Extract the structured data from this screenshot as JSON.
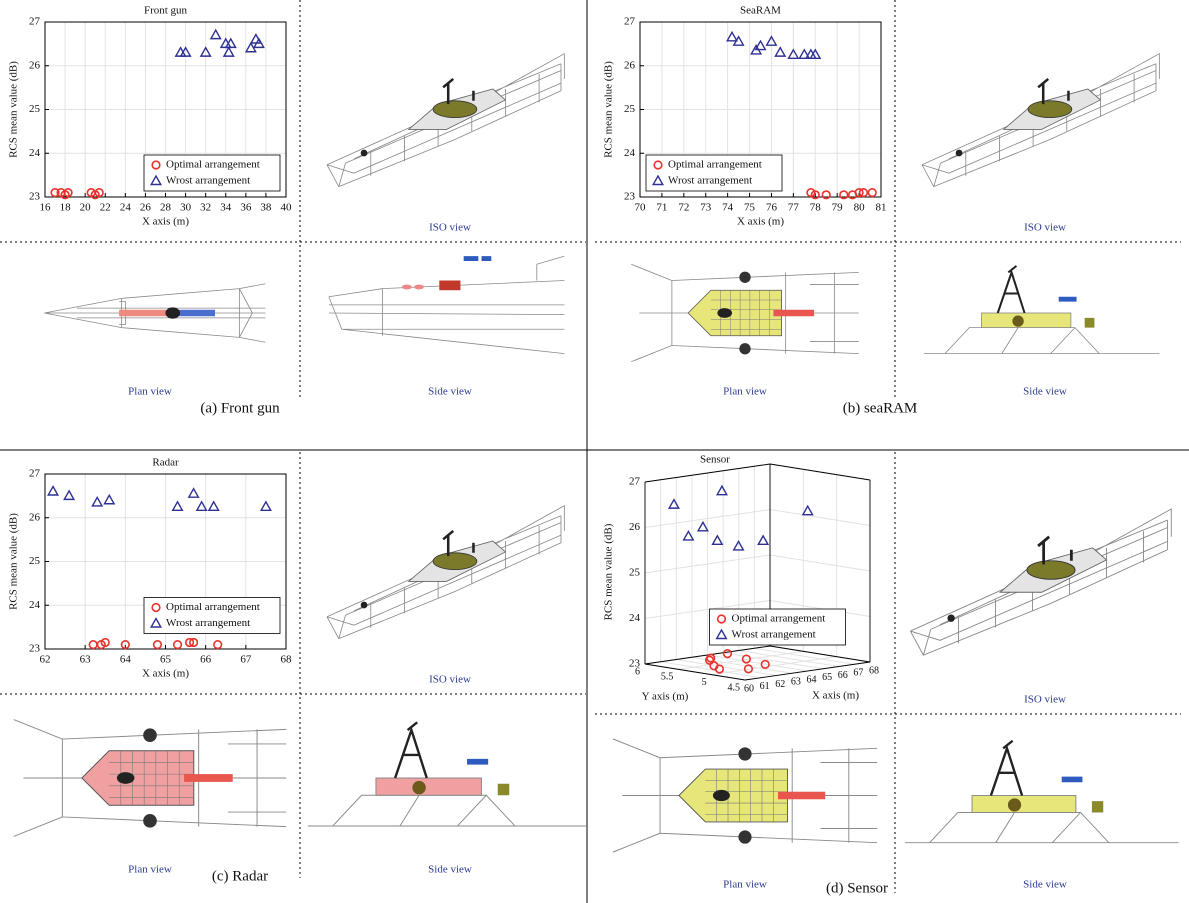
{
  "chart_data": [
    {
      "type": "scatter",
      "title": "Front gun",
      "xlabel": "X axis (m)",
      "ylabel": "RCS mean value (dB)",
      "xlim": [
        16,
        40
      ],
      "xticks": [
        16,
        18,
        20,
        22,
        24,
        26,
        28,
        30,
        32,
        34,
        36,
        38,
        40
      ],
      "ylim": [
        23,
        27
      ],
      "yticks": [
        23,
        24,
        25,
        26,
        27
      ],
      "grid": true,
      "legend": "lower right",
      "series": [
        {
          "name": "Optimal arrangement",
          "color": "#e8322b",
          "marker": "circle",
          "x": [
            17,
            17.6,
            18,
            18.3,
            20.6,
            21,
            21.4
          ],
          "values": [
            23.1,
            23.1,
            23.05,
            23.1,
            23.1,
            23.05,
            23.1
          ]
        },
        {
          "name": "Wrost arrangement",
          "color": "#2e3192",
          "marker": "triangle",
          "x": [
            29.5,
            30,
            32,
            33,
            34,
            34.3,
            34.5,
            36.5,
            37,
            37.3
          ],
          "values": [
            26.3,
            26.3,
            26.3,
            26.7,
            26.5,
            26.3,
            26.5,
            26.4,
            26.6,
            26.5
          ]
        }
      ]
    },
    {
      "type": "scatter",
      "title": "SeaRAM",
      "xlabel": "X axis (m)",
      "ylabel": "RCS mean value (dB)",
      "xlim": [
        70,
        81
      ],
      "xticks": [
        70,
        71,
        72,
        73,
        74,
        75,
        76,
        77,
        78,
        79,
        80,
        81
      ],
      "ylim": [
        23,
        27
      ],
      "yticks": [
        23,
        24,
        25,
        26,
        27
      ],
      "grid": true,
      "legend": "lower left",
      "series": [
        {
          "name": "Optimal arrangement",
          "color": "#e8322b",
          "marker": "circle",
          "x": [
            77.8,
            78,
            78.5,
            79.3,
            79.7,
            80,
            80.2,
            80.6
          ],
          "values": [
            23.1,
            23.05,
            23.05,
            23.05,
            23.05,
            23.1,
            23.1,
            23.1
          ]
        },
        {
          "name": "Wrost arrangement",
          "color": "#2e3192",
          "marker": "triangle",
          "x": [
            74.2,
            74.5,
            75.3,
            75.5,
            76,
            76.4,
            77,
            77.5,
            77.8,
            78
          ],
          "values": [
            26.65,
            26.55,
            26.35,
            26.45,
            26.55,
            26.3,
            26.25,
            26.25,
            26.25,
            26.25
          ]
        }
      ]
    },
    {
      "type": "scatter",
      "title": "Radar",
      "xlabel": "X axis (m)",
      "ylabel": "RCS mean value (dB)",
      "xlim": [
        62,
        68
      ],
      "xticks": [
        62,
        63,
        64,
        65,
        66,
        67,
        68
      ],
      "ylim": [
        23,
        27
      ],
      "yticks": [
        23,
        24,
        25,
        26,
        27
      ],
      "grid": true,
      "legend": "center right",
      "series": [
        {
          "name": "Optimal arrangement",
          "color": "#e8322b",
          "marker": "circle",
          "x": [
            63.2,
            63.4,
            63.5,
            64,
            64.8,
            65.3,
            65.6,
            65.7,
            66.3
          ],
          "values": [
            23.1,
            23.1,
            23.15,
            23.1,
            23.1,
            23.1,
            23.15,
            23.15,
            23.1
          ]
        },
        {
          "name": "Wrost arrangement",
          "color": "#2e3192",
          "marker": "triangle",
          "x": [
            62.2,
            62.6,
            63.3,
            63.6,
            65.3,
            65.7,
            65.9,
            66.2,
            67.5
          ],
          "values": [
            26.6,
            26.5,
            26.35,
            26.4,
            26.25,
            26.55,
            26.25,
            26.25,
            26.25
          ]
        }
      ]
    },
    {
      "type": "scatter3d",
      "title": "Sensor",
      "xlabel": "X axis (m)",
      "ylabel": "Y axis (m)",
      "zlabel": "RCS mean value (dB)",
      "xlim": [
        60,
        68
      ],
      "xticks": [
        60,
        61,
        62,
        63,
        64,
        65,
        66,
        67,
        68
      ],
      "ylim": [
        4.5,
        6
      ],
      "yticks": [
        4.5,
        5,
        5.5,
        6
      ],
      "zlim": [
        23,
        27
      ],
      "zticks": [
        23,
        24,
        25,
        26,
        27
      ],
      "grid": true,
      "legend": "center",
      "series": [
        {
          "name": "Optimal arrangement",
          "color": "#e8322b",
          "marker": "circle",
          "x": [
            60.5,
            61,
            61.5,
            62,
            62.5,
            63,
            63.5,
            64
          ],
          "y": [
            5.0,
            5.2,
            4.8,
            5.5,
            5.6,
            4.9,
            5.3,
            5.7
          ],
          "values": [
            23.1,
            23.1,
            23.1,
            23.1,
            23.1,
            23.1,
            23.1,
            23.1
          ]
        },
        {
          "name": "Wrost arrangement",
          "color": "#2e3192",
          "marker": "triangle",
          "x": [
            61,
            61.5,
            62,
            62.5,
            63,
            64.5,
            65,
            67
          ],
          "y": [
            5.8,
            5.7,
            5.6,
            5.5,
            5.3,
            5.9,
            5.4,
            5.2
          ],
          "values": [
            26.5,
            25.8,
            26,
            25.7,
            25.6,
            26.6,
            25.6,
            26.2
          ]
        }
      ]
    }
  ],
  "panels": [
    {
      "caption": "(a) Front gun",
      "iso_label": "ISO view",
      "plan_label": "Plan view",
      "side_label": "Side view"
    },
    {
      "caption": "(b) seaRAM",
      "iso_label": "ISO view",
      "plan_label": "Plan view",
      "side_label": "Side view"
    },
    {
      "caption": "(c) Radar",
      "iso_label": "ISO view",
      "plan_label": "Plan view",
      "side_label": "Side view"
    },
    {
      "caption": "(d) Sensor",
      "iso_label": "ISO view",
      "plan_label": "Plan view",
      "side_label": "Side view"
    }
  ]
}
